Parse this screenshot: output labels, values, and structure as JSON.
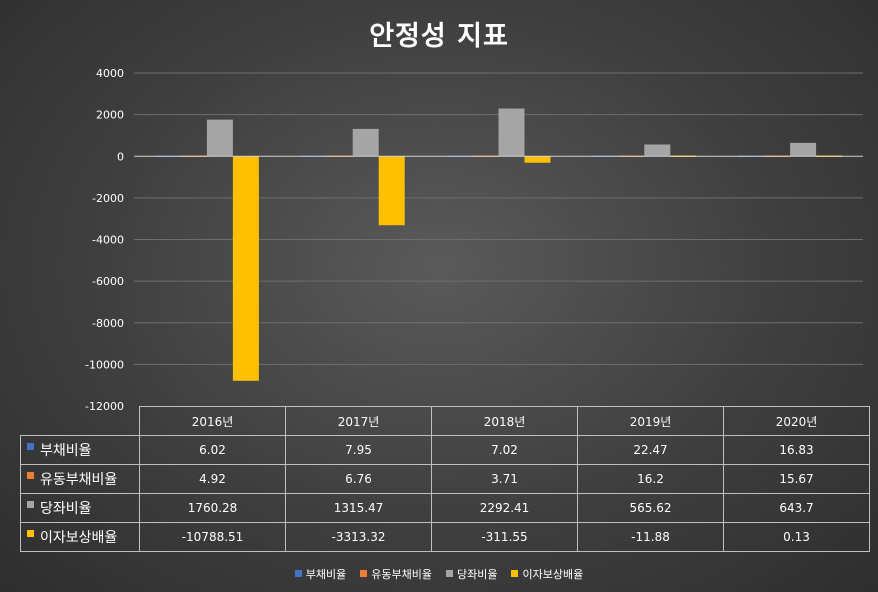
{
  "chart_data": {
    "type": "bar",
    "title": "안정성 지표",
    "categories": [
      "2016년",
      "2017년",
      "2018년",
      "2019년",
      "2020년"
    ],
    "series": [
      {
        "name": "부채비율",
        "color": "#4472c4",
        "values": [
          6.02,
          7.95,
          7.02,
          22.47,
          16.83
        ],
        "labels": [
          "6.02",
          "7.95",
          "7.02",
          "22.47",
          "16.83"
        ]
      },
      {
        "name": "유동부채비율",
        "color": "#ed7d31",
        "values": [
          4.92,
          6.76,
          3.71,
          16.2,
          15.67
        ],
        "labels": [
          "4.92",
          "6.76",
          "3.71",
          "16.2",
          "15.67"
        ]
      },
      {
        "name": "당좌비율",
        "color": "#a5a5a5",
        "values": [
          1760.28,
          1315.47,
          2292.41,
          565.62,
          643.7
        ],
        "labels": [
          "1760.28",
          "1315.47",
          "2292.41",
          "565.62",
          "643.7"
        ]
      },
      {
        "name": "이자보상배율",
        "color": "#ffc000",
        "values": [
          -10788.51,
          -3313.32,
          -311.55,
          -11.88,
          0.13
        ],
        "labels": [
          "-10788.51",
          "-3313.32",
          "-311.55",
          "-11.88",
          "0.13"
        ]
      }
    ],
    "ylim": [
      -12000,
      4000
    ],
    "yticks": [
      4000,
      2000,
      0,
      -2000,
      -4000,
      -6000,
      -8000,
      -10000,
      -12000
    ],
    "grid": true,
    "legend": "bottom",
    "data_table": true
  }
}
